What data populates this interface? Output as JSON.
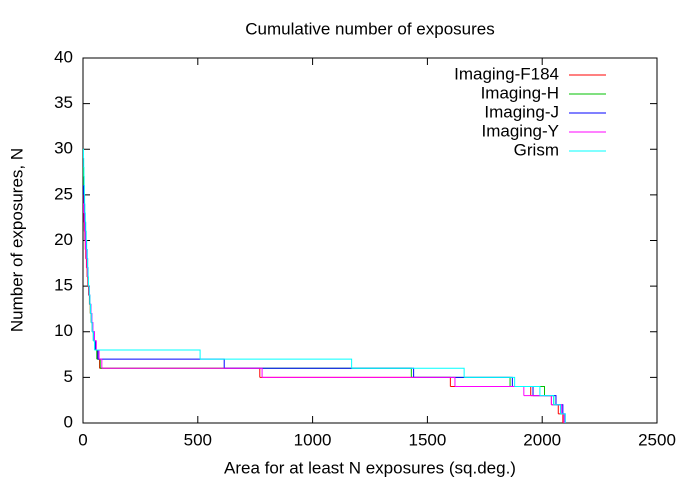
{
  "chart_data": {
    "type": "step",
    "title": "Cumulative number of exposures",
    "x_label": "Area for at least N exposures (sq.deg.)",
    "y_label": "Number of exposures, N",
    "xlim": [
      0,
      2500
    ],
    "ylim": [
      0,
      40
    ],
    "xticks": [
      0,
      500,
      1000,
      1500,
      2000,
      2500
    ],
    "yticks": [
      0,
      5,
      10,
      15,
      20,
      25,
      30,
      35,
      40
    ],
    "legend": "top-right",
    "series": [
      {
        "name": "Imaging-F184",
        "color": "#ff0000",
        "x": [
          2,
          3,
          4,
          6,
          8,
          10,
          12,
          15,
          18,
          21,
          24,
          28,
          32,
          36,
          41,
          47,
          55,
          62,
          72,
          770,
          1600,
          1950,
          2040,
          2070,
          2090
        ],
        "values": [
          25,
          24,
          23,
          22,
          21,
          20,
          19,
          18,
          17,
          16,
          15,
          14,
          13,
          12,
          11,
          10,
          9,
          8,
          7,
          6,
          5,
          4,
          3,
          2,
          1
        ]
      },
      {
        "name": "Imaging-H",
        "color": "#00c000",
        "x": [
          2,
          3,
          4,
          5,
          7,
          9,
          11,
          13,
          15,
          17,
          19,
          21,
          23,
          26,
          29,
          32,
          36,
          40,
          45,
          52,
          60,
          75,
          1430,
          1860,
          2010,
          2050,
          2080,
          2095
        ],
        "values": [
          28,
          27,
          26,
          25,
          24,
          23,
          22,
          21,
          20,
          19,
          18,
          17,
          16,
          15,
          14,
          13,
          12,
          11,
          10,
          9,
          8,
          7,
          6,
          5,
          4,
          3,
          2,
          1
        ]
      },
      {
        "name": "Imaging-J",
        "color": "#0000ff",
        "x": [
          3,
          4,
          6,
          8,
          10,
          12,
          15,
          18,
          20,
          22,
          24,
          27,
          30,
          34,
          38,
          42,
          48,
          55,
          65,
          615,
          1440,
          1870,
          1960,
          2060,
          2090,
          2100
        ],
        "values": [
          26,
          25,
          24,
          23,
          22,
          21,
          20,
          19,
          18,
          17,
          16,
          15,
          14,
          13,
          12,
          11,
          10,
          9,
          8,
          7,
          6,
          5,
          4,
          3,
          2,
          1
        ]
      },
      {
        "name": "Imaging-Y",
        "color": "#ff00ff",
        "x": [
          3,
          5,
          7,
          9,
          11,
          14,
          17,
          20,
          23,
          26,
          30,
          34,
          38,
          43,
          50,
          58,
          70,
          82,
          780,
          1620,
          1920,
          2040,
          2085,
          2095
        ],
        "values": [
          24,
          23,
          22,
          21,
          20,
          19,
          18,
          17,
          16,
          15,
          14,
          13,
          12,
          11,
          10,
          9,
          8,
          7,
          6,
          5,
          4,
          3,
          2,
          1
        ]
      },
      {
        "name": "Grism",
        "color": "#00ffff",
        "x": [
          2,
          3,
          4,
          5,
          6,
          7,
          8,
          10,
          12,
          14,
          16,
          18,
          20,
          22,
          24,
          27,
          30,
          33,
          36,
          40,
          45,
          50,
          510,
          1170,
          1660,
          1880,
          1990,
          2050,
          2080,
          2100
        ],
        "values": [
          30,
          29,
          28,
          27,
          26,
          25,
          24,
          23,
          22,
          21,
          20,
          19,
          18,
          17,
          16,
          15,
          14,
          13,
          12,
          11,
          10,
          9,
          8,
          7,
          6,
          5,
          4,
          3,
          2,
          1
        ]
      }
    ]
  }
}
